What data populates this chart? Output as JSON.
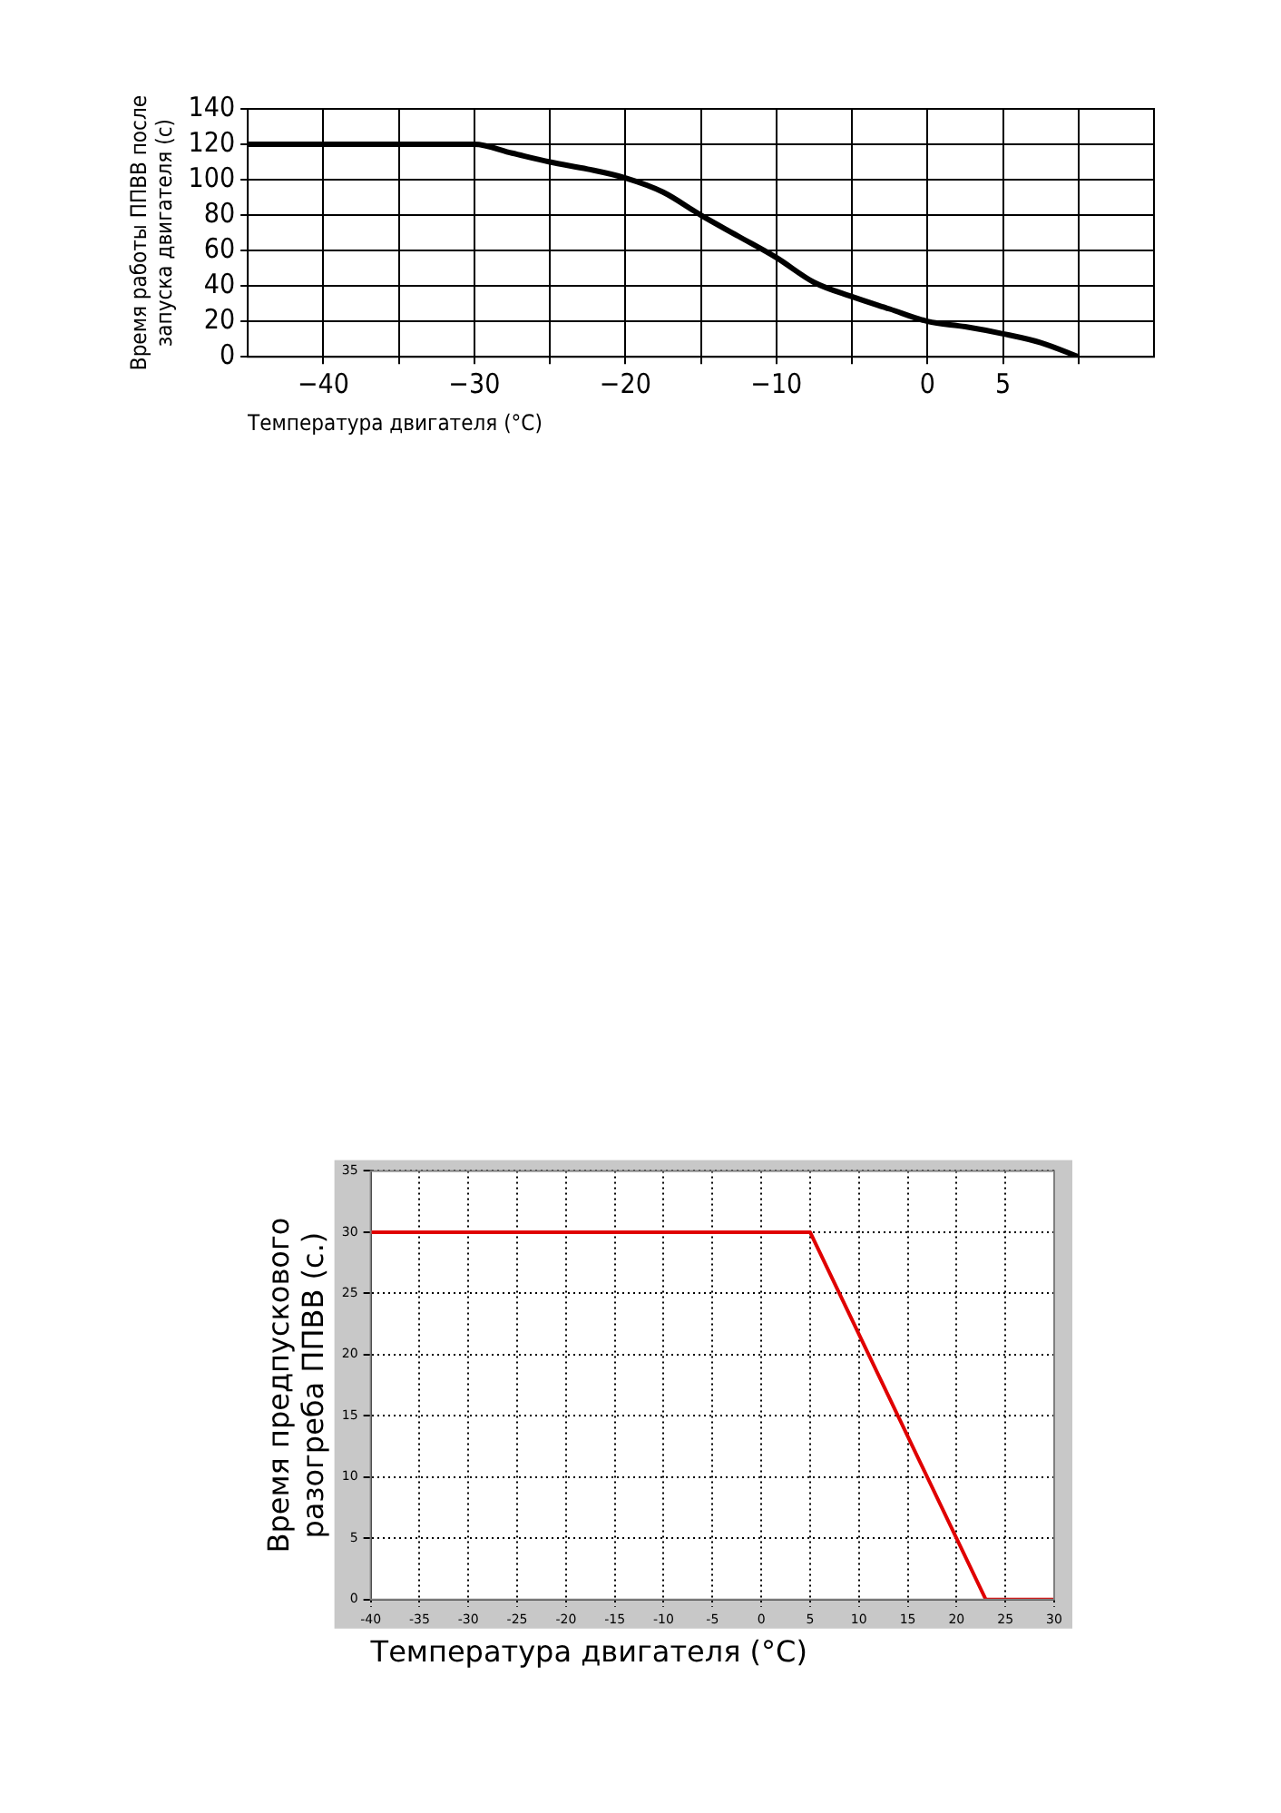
{
  "chart_data": [
    {
      "type": "line",
      "xlabel": "Температура двигателя (°C)",
      "ylabel": "Время работы ППВВ после\nзапуска двигателя (с)",
      "xlim": [
        -45,
        15
      ],
      "xticks": [
        {
          "value": -40,
          "label": "−40"
        },
        {
          "value": -35,
          "label": null
        },
        {
          "value": -30,
          "label": "−30"
        },
        {
          "value": -25,
          "label": null
        },
        {
          "value": -20,
          "label": "−20"
        },
        {
          "value": -15,
          "label": null
        },
        {
          "value": -10,
          "label": "−10"
        },
        {
          "value": -5,
          "label": null
        },
        0,
        5,
        {
          "value": 10,
          "label": null
        }
      ],
      "ylim": [
        0,
        140
      ],
      "yticks": [
        0,
        20,
        40,
        60,
        80,
        100,
        120,
        140
      ],
      "grid": true,
      "legend": false,
      "series": [
        {
          "color": "#000000",
          "x": [
            -45,
            -30,
            -27.5,
            -25,
            -22.5,
            -20,
            -17.5,
            -15,
            -12.5,
            -10,
            -7.5,
            -5,
            -2.5,
            0,
            2.5,
            5,
            7.5,
            10
          ],
          "values": [
            120,
            120,
            115,
            110,
            106,
            101,
            93,
            80,
            68,
            56,
            42,
            34,
            27,
            20,
            17,
            13,
            8,
            0
          ]
        }
      ]
    },
    {
      "type": "line",
      "xlabel": "Температура двигателя (°C)",
      "ylabel": "Время предпускового\nразогреба ППВВ (с.)",
      "xlim": [
        -40,
        30
      ],
      "xticks": [
        -40,
        -35,
        -30,
        -25,
        -20,
        -15,
        -10,
        -5,
        0,
        5,
        10,
        15,
        20,
        25,
        30
      ],
      "ylim": [
        0,
        35
      ],
      "yticks": [
        0,
        5,
        10,
        15,
        20,
        25,
        30,
        35
      ],
      "grid": true,
      "legend": false,
      "series": [
        {
          "color": "#e00000",
          "x": [
            -40,
            5,
            23,
            30
          ],
          "values": [
            30,
            30,
            0,
            0
          ]
        }
      ]
    }
  ]
}
